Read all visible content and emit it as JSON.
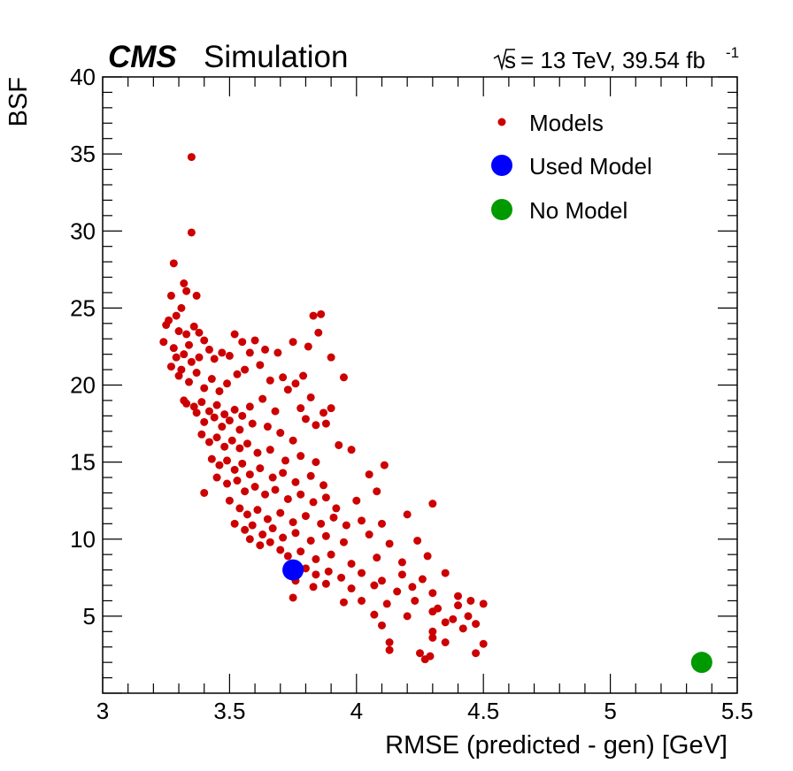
{
  "header": {
    "cms": "CMS",
    "simulation": "Simulation",
    "sqrt_s": "s",
    "energy_lumi": "= 13 TeV, 39.54 fb",
    "lumi_exp": "-1"
  },
  "chart_data": {
    "type": "scatter",
    "xlabel": "RMSE (predicted - gen) [GeV]",
    "ylabel": "BSF",
    "xlim": [
      3,
      5.5
    ],
    "ylim": [
      0,
      40
    ],
    "x_ticks": [
      "3",
      "3.5",
      "4",
      "4.5",
      "5",
      "5.5"
    ],
    "y_ticks": [
      "5",
      "10",
      "15",
      "20",
      "25",
      "30",
      "35",
      "40"
    ],
    "grid": false,
    "legend_position": "top-right",
    "colors": {
      "models": "#cc0000",
      "used": "#0000ff",
      "none": "#009900"
    },
    "series": [
      {
        "name": "Models",
        "points": [
          [
            3.35,
            34.8
          ],
          [
            3.35,
            29.9
          ],
          [
            3.28,
            27.9
          ],
          [
            3.32,
            26.6
          ],
          [
            3.27,
            25.8
          ],
          [
            3.33,
            26.1
          ],
          [
            3.37,
            25.8
          ],
          [
            3.86,
            24.6
          ],
          [
            3.83,
            24.5
          ],
          [
            3.25,
            23.9
          ],
          [
            3.29,
            24.5
          ],
          [
            3.31,
            25.0
          ],
          [
            3.26,
            24.2
          ],
          [
            3.36,
            23.8
          ],
          [
            3.3,
            23.5
          ],
          [
            3.33,
            23.3
          ],
          [
            3.24,
            22.8
          ],
          [
            3.28,
            22.4
          ],
          [
            3.34,
            22.6
          ],
          [
            3.38,
            23.4
          ],
          [
            3.4,
            22.9
          ],
          [
            3.29,
            21.8
          ],
          [
            3.32,
            22.0
          ],
          [
            3.27,
            21.2
          ],
          [
            3.35,
            21.5
          ],
          [
            3.31,
            21.0
          ],
          [
            3.38,
            21.8
          ],
          [
            3.42,
            22.3
          ],
          [
            3.44,
            21.7
          ],
          [
            3.47,
            22.1
          ],
          [
            3.5,
            21.9
          ],
          [
            3.52,
            23.3
          ],
          [
            3.55,
            22.8
          ],
          [
            3.58,
            22.1
          ],
          [
            3.6,
            22.9
          ],
          [
            3.64,
            22.3
          ],
          [
            3.69,
            22.1
          ],
          [
            3.75,
            22.8
          ],
          [
            3.81,
            22.5
          ],
          [
            3.85,
            23.4
          ],
          [
            3.9,
            21.8
          ],
          [
            3.95,
            20.5
          ],
          [
            3.3,
            20.6
          ],
          [
            3.34,
            20.2
          ],
          [
            3.37,
            20.8
          ],
          [
            3.4,
            19.8
          ],
          [
            3.43,
            20.4
          ],
          [
            3.46,
            19.6
          ],
          [
            3.49,
            20.1
          ],
          [
            3.53,
            20.7
          ],
          [
            3.56,
            21.0
          ],
          [
            3.62,
            21.3
          ],
          [
            3.66,
            20.3
          ],
          [
            3.71,
            20.5
          ],
          [
            3.76,
            20.1
          ],
          [
            3.79,
            20.6
          ],
          [
            3.32,
            19.0
          ],
          [
            3.36,
            18.6
          ],
          [
            3.39,
            18.9
          ],
          [
            3.42,
            18.3
          ],
          [
            3.45,
            18.7
          ],
          [
            3.48,
            18.1
          ],
          [
            3.52,
            18.4
          ],
          [
            3.55,
            18.0
          ],
          [
            3.58,
            18.6
          ],
          [
            3.63,
            19.1
          ],
          [
            3.68,
            18.3
          ],
          [
            3.73,
            19.7
          ],
          [
            3.78,
            18.5
          ],
          [
            3.82,
            19.2
          ],
          [
            3.87,
            18.2
          ],
          [
            3.9,
            18.5
          ],
          [
            3.88,
            17.5
          ],
          [
            3.33,
            18.8
          ],
          [
            3.37,
            18.2
          ],
          [
            3.4,
            17.6
          ],
          [
            3.44,
            17.9
          ],
          [
            3.47,
            17.3
          ],
          [
            3.5,
            17.7
          ],
          [
            3.54,
            17.1
          ],
          [
            3.59,
            17.5
          ],
          [
            3.65,
            17.3
          ],
          [
            3.7,
            16.9
          ],
          [
            3.75,
            16.4
          ],
          [
            3.8,
            17.8
          ],
          [
            3.84,
            17.4
          ],
          [
            3.39,
            16.8
          ],
          [
            3.42,
            16.3
          ],
          [
            3.45,
            16.6
          ],
          [
            3.48,
            16.0
          ],
          [
            3.51,
            16.4
          ],
          [
            3.54,
            15.9
          ],
          [
            3.57,
            16.2
          ],
          [
            3.61,
            15.6
          ],
          [
            3.66,
            15.8
          ],
          [
            3.72,
            15.1
          ],
          [
            3.78,
            15.4
          ],
          [
            3.84,
            15.0
          ],
          [
            3.93,
            16.1
          ],
          [
            3.98,
            15.8
          ],
          [
            3.43,
            15.2
          ],
          [
            3.46,
            14.8
          ],
          [
            3.49,
            15.1
          ],
          [
            3.52,
            14.5
          ],
          [
            3.55,
            14.9
          ],
          [
            3.58,
            14.2
          ],
          [
            3.62,
            14.6
          ],
          [
            3.67,
            14.0
          ],
          [
            3.71,
            14.3
          ],
          [
            3.76,
            13.7
          ],
          [
            3.82,
            14.1
          ],
          [
            3.87,
            13.5
          ],
          [
            4.11,
            14.8
          ],
          [
            4.05,
            14.2
          ],
          [
            3.45,
            14.0
          ],
          [
            3.49,
            13.6
          ],
          [
            3.53,
            13.8
          ],
          [
            3.56,
            13.1
          ],
          [
            3.6,
            13.4
          ],
          [
            3.64,
            12.9
          ],
          [
            3.68,
            13.2
          ],
          [
            3.73,
            12.6
          ],
          [
            3.78,
            12.9
          ],
          [
            3.83,
            12.4
          ],
          [
            3.88,
            12.7
          ],
          [
            3.92,
            12.0
          ],
          [
            4.0,
            12.5
          ],
          [
            4.08,
            13.1
          ],
          [
            4.3,
            12.3
          ],
          [
            3.4,
            13.0
          ],
          [
            3.5,
            12.5
          ],
          [
            3.54,
            12.0
          ],
          [
            3.57,
            11.6
          ],
          [
            3.61,
            11.9
          ],
          [
            3.65,
            11.3
          ],
          [
            3.7,
            11.7
          ],
          [
            3.75,
            11.1
          ],
          [
            3.8,
            11.5
          ],
          [
            3.86,
            11.0
          ],
          [
            3.91,
            11.4
          ],
          [
            3.96,
            10.9
          ],
          [
            4.02,
            11.2
          ],
          [
            4.1,
            11.0
          ],
          [
            4.2,
            11.6
          ],
          [
            3.52,
            11.0
          ],
          [
            3.56,
            10.6
          ],
          [
            3.59,
            10.9
          ],
          [
            3.63,
            10.3
          ],
          [
            3.67,
            10.7
          ],
          [
            3.71,
            10.1
          ],
          [
            3.76,
            10.4
          ],
          [
            3.82,
            9.9
          ],
          [
            3.88,
            10.2
          ],
          [
            3.95,
            9.8
          ],
          [
            4.05,
            10.3
          ],
          [
            4.13,
            9.7
          ],
          [
            4.24,
            9.9
          ],
          [
            3.58,
            10.0
          ],
          [
            3.62,
            9.6
          ],
          [
            3.66,
            9.8
          ],
          [
            3.7,
            9.3
          ],
          [
            3.73,
            8.9
          ],
          [
            3.78,
            9.2
          ],
          [
            3.84,
            8.7
          ],
          [
            3.9,
            9.0
          ],
          [
            3.98,
            8.4
          ],
          [
            4.08,
            8.8
          ],
          [
            4.18,
            8.5
          ],
          [
            4.28,
            8.9
          ],
          [
            3.8,
            8.1
          ],
          [
            3.84,
            7.7
          ],
          [
            3.89,
            7.9
          ],
          [
            3.94,
            7.5
          ],
          [
            4.02,
            7.8
          ],
          [
            4.1,
            7.3
          ],
          [
            4.18,
            7.7
          ],
          [
            4.26,
            7.4
          ],
          [
            4.35,
            7.8
          ],
          [
            3.76,
            7.3
          ],
          [
            3.83,
            6.9
          ],
          [
            3.88,
            7.1
          ],
          [
            3.98,
            6.8
          ],
          [
            4.07,
            7.0
          ],
          [
            4.16,
            6.6
          ],
          [
            4.22,
            6.9
          ],
          [
            4.3,
            6.5
          ],
          [
            4.4,
            6.3
          ],
          [
            3.75,
            6.2
          ],
          [
            3.95,
            5.9
          ],
          [
            4.02,
            6.0
          ],
          [
            4.12,
            5.8
          ],
          [
            4.23,
            6.0
          ],
          [
            4.32,
            5.5
          ],
          [
            4.4,
            5.7
          ],
          [
            4.45,
            6.0
          ],
          [
            4.5,
            5.8
          ],
          [
            4.07,
            5.1
          ],
          [
            4.2,
            5.0
          ],
          [
            4.3,
            5.3
          ],
          [
            4.38,
            4.8
          ],
          [
            4.44,
            5.0
          ],
          [
            4.1,
            4.4
          ],
          [
            4.3,
            4.0
          ],
          [
            4.35,
            4.6
          ],
          [
            4.42,
            4.2
          ],
          [
            4.47,
            4.5
          ],
          [
            4.13,
            3.3
          ],
          [
            4.3,
            3.6
          ],
          [
            4.35,
            3.3
          ],
          [
            4.5,
            3.2
          ],
          [
            4.13,
            2.8
          ],
          [
            4.25,
            2.6
          ],
          [
            4.27,
            2.2
          ],
          [
            4.29,
            2.4
          ],
          [
            4.47,
            2.6
          ]
        ]
      },
      {
        "name": "Used Model",
        "points": [
          [
            3.75,
            8.0
          ]
        ]
      },
      {
        "name": "No Model",
        "points": [
          [
            5.36,
            2.0
          ]
        ]
      }
    ]
  }
}
